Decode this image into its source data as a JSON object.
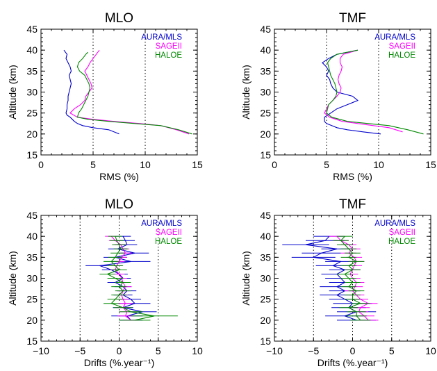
{
  "chart_data": [
    {
      "type": "line",
      "title": "MLO",
      "xlabel": "RMS (%)",
      "ylabel": "Altitude (km)",
      "xlim": [
        0,
        15
      ],
      "ylim": [
        15,
        45
      ],
      "xticks": [
        "0",
        "5",
        "10",
        "15"
      ],
      "yticks": [
        "15",
        "20",
        "25",
        "30",
        "35",
        "40",
        "45"
      ],
      "grid": "dotted vertical lines at x=5 and x=10",
      "legend": "top-right",
      "series": [
        {
          "name": "AURA/MLS",
          "color": "#0000cc",
          "x": [
            2.2,
            2.5,
            2.4,
            2.6,
            2.8,
            2.9,
            2.7,
            2.8,
            2.9,
            2.8,
            2.7,
            2.6,
            2.6,
            2.5,
            2.5,
            2.4,
            2.5,
            2.8,
            3.0,
            3.2,
            3.5,
            4.0,
            5.0,
            6.5,
            7.5
          ],
          "y": [
            40,
            39,
            38,
            37,
            36,
            35,
            34,
            33,
            32,
            31,
            30,
            29,
            28,
            27,
            26,
            25,
            24.5,
            24,
            23.5,
            23,
            22.5,
            22,
            21.5,
            21,
            20
          ]
        },
        {
          "name": "SAGEII",
          "color": "#ff00ff",
          "x": [
            5.6,
            5.3,
            5.0,
            4.7,
            4.5,
            4.2,
            4.4,
            4.6,
            4.8,
            4.9,
            4.6,
            4.3,
            4.2,
            3.8,
            3.2,
            2.8,
            3.5,
            5.0,
            7.0,
            9.5,
            11.5,
            13.0,
            14.2
          ],
          "y": [
            40,
            39,
            38,
            37,
            36,
            35,
            34,
            33,
            32,
            31,
            30,
            29,
            28,
            27,
            26,
            25,
            24,
            23.5,
            23,
            22.5,
            22,
            21,
            20
          ]
        },
        {
          "name": "HALOE",
          "color": "#008800",
          "x": [
            4.5,
            4.3,
            4.0,
            3.6,
            3.5,
            3.7,
            4.2,
            4.4,
            4.6,
            4.7,
            4.6,
            4.5,
            4.3,
            4.1,
            3.9,
            3.6,
            3.5,
            4.5,
            6.5,
            9.0,
            11.5,
            13.2,
            14.5
          ],
          "y": [
            39.5,
            39,
            38,
            37,
            36,
            35,
            34,
            33,
            32,
            31,
            30,
            29,
            28,
            27,
            26,
            25,
            24,
            23.5,
            23,
            22.5,
            22,
            21,
            20
          ]
        }
      ]
    },
    {
      "type": "line",
      "title": "TMF",
      "xlabel": "RMS (%)",
      "ylabel": "Altitude (km)",
      "xlim": [
        0,
        15
      ],
      "ylim": [
        15,
        45
      ],
      "xticks": [
        "0",
        "5",
        "10",
        "15"
      ],
      "yticks": [
        "15",
        "20",
        "25",
        "30",
        "35",
        "40",
        "45"
      ],
      "grid": "dotted vertical lines at x=5 and x=10",
      "legend": "top-right",
      "series": [
        {
          "name": "AURA/MLS",
          "color": "#0000cc",
          "x": [
            8.0,
            7.0,
            6.0,
            5.2,
            4.6,
            5.0,
            5.2,
            5.0,
            5.3,
            5.4,
            5.6,
            6.0,
            7.5,
            8.0,
            7.0,
            6.0,
            5.4,
            4.8,
            4.8,
            5.0,
            5.5,
            6.0,
            7.0,
            8.5,
            10.2
          ],
          "y": [
            40,
            39.5,
            39,
            38,
            37,
            36,
            35,
            34,
            33,
            32,
            31,
            30,
            29,
            28,
            27,
            26,
            25,
            24,
            23,
            22.5,
            22,
            21.5,
            21,
            20.5,
            20
          ]
        },
        {
          "name": "SAGEII",
          "color": "#ff00ff",
          "x": [
            8.0,
            7.3,
            6.6,
            6.3,
            6.3,
            6.5,
            6.4,
            6.2,
            6.1,
            6.2,
            6.4,
            6.3,
            6.0,
            5.6,
            5.2,
            4.8,
            5.3,
            6.5,
            8.0,
            9.5,
            11.0,
            12.3
          ],
          "y": [
            40,
            39.5,
            39,
            38,
            37,
            36,
            35,
            34,
            33,
            32,
            31,
            30,
            29,
            28,
            27,
            25,
            24,
            23,
            22.5,
            22,
            21.5,
            20.5
          ]
        },
        {
          "name": "HALOE",
          "color": "#008800",
          "x": [
            8.0,
            7.0,
            6.0,
            5.4,
            5.1,
            5.2,
            5.3,
            5.4,
            5.6,
            5.8,
            5.9,
            6.0,
            5.9,
            5.6,
            5.2,
            5.0,
            5.5,
            7.0,
            9.0,
            11.0,
            12.8,
            14.3
          ],
          "y": [
            40,
            39.5,
            39,
            38,
            37,
            36,
            35,
            34,
            33,
            32,
            31,
            30,
            29,
            28,
            27,
            25,
            24,
            23,
            22.5,
            22,
            21,
            20
          ]
        }
      ]
    },
    {
      "type": "line",
      "title": "MLO",
      "xlabel": "Drifts (%.year⁻¹)",
      "ylabel": "Altitude (km)",
      "xlim": [
        -10,
        10
      ],
      "ylim": [
        15,
        45
      ],
      "xticks": [
        "−10",
        "−5",
        "0",
        "5",
        "10"
      ],
      "yticks": [
        "15",
        "20",
        "25",
        "30",
        "35",
        "40",
        "45"
      ],
      "grid": "dotted vertical lines at x=-5, 0 and 5",
      "legend": "top-right",
      "series": [
        {
          "name": "AURA/MLS",
          "color": "#0000cc",
          "y": [
            40,
            39,
            38,
            37,
            36,
            35,
            34,
            33,
            32,
            31,
            30,
            29,
            28,
            27,
            26,
            25,
            24,
            23,
            22,
            21,
            20
          ],
          "x": [
            0.5,
            0.8,
            1.0,
            -0.2,
            2.0,
            -0.5,
            1.5,
            -2.5,
            -1.0,
            0.0,
            0.5,
            -0.5,
            0.5,
            1.0,
            0.5,
            1.5,
            2.0,
            0.5,
            3.0,
            1.0,
            1.5
          ],
          "err": [
            1.0,
            1.2,
            1.3,
            1.2,
            1.8,
            1.5,
            2.5,
            1.8,
            1.2,
            1.1,
            1.0,
            1.0,
            1.1,
            1.2,
            1.2,
            1.3,
            2.0,
            1.3,
            1.8,
            2.0,
            1.5
          ]
        },
        {
          "name": "SAGEII",
          "color": "#ff00ff",
          "y": [
            40,
            39,
            38,
            37,
            36,
            35,
            34,
            33,
            32,
            31,
            30,
            29,
            28,
            27,
            26,
            25,
            24,
            23,
            22,
            21,
            20
          ],
          "x": [
            -1.0,
            -0.5,
            0.2,
            0.5,
            0.8,
            0.3,
            0.0,
            -0.3,
            -0.5,
            0.0,
            0.3,
            0.5,
            0.8,
            0.5,
            0.3,
            0.5,
            0.8,
            0.5,
            1.0,
            0.8,
            1.5
          ],
          "err": [
            0.8,
            0.8,
            0.8,
            0.8,
            0.8,
            0.7,
            0.7,
            0.7,
            0.7,
            0.7,
            0.7,
            0.7,
            0.8,
            0.8,
            0.8,
            0.8,
            0.9,
            0.9,
            1.0,
            1.0,
            1.0
          ]
        },
        {
          "name": "HALOE",
          "color": "#008800",
          "y": [
            40,
            39,
            38,
            37,
            36,
            35,
            34,
            33,
            32,
            31,
            30,
            29,
            28,
            27,
            26,
            25,
            24,
            23,
            22,
            21,
            20
          ],
          "x": [
            -0.5,
            -0.3,
            0.0,
            0.2,
            -0.2,
            -0.5,
            -1.0,
            -0.5,
            0.0,
            -1.5,
            -0.5,
            0.5,
            0.0,
            0.5,
            0.0,
            -0.5,
            -1.0,
            0.5,
            1.5,
            4.5,
            2.0
          ],
          "err": [
            0.9,
            0.9,
            0.9,
            0.9,
            0.9,
            0.9,
            1.0,
            1.0,
            1.0,
            1.0,
            1.0,
            1.0,
            1.0,
            1.0,
            1.0,
            1.0,
            1.0,
            1.2,
            1.5,
            3.0,
            2.0
          ]
        }
      ]
    },
    {
      "type": "line",
      "title": "TMF",
      "xlabel": "Drifts (%.year⁻¹)",
      "ylabel": "Altitude (km)",
      "xlim": [
        -10,
        10
      ],
      "ylim": [
        15,
        45
      ],
      "xticks": [
        "−10",
        "−5",
        "0",
        "5",
        "10"
      ],
      "yticks": [
        "15",
        "20",
        "25",
        "30",
        "35",
        "40",
        "45"
      ],
      "grid": "dotted vertical lines at x=-5, 0 and 5",
      "legend": "top-right",
      "series": [
        {
          "name": "AURA/MLS",
          "color": "#0000cc",
          "y": [
            40,
            39,
            38,
            37,
            36,
            35,
            34,
            33,
            32,
            31,
            30,
            29,
            28,
            27,
            26,
            25,
            24,
            23,
            22,
            21,
            20
          ],
          "x": [
            -3.0,
            -3.5,
            -6.0,
            -2.0,
            -4.0,
            -5.0,
            -1.5,
            -2.5,
            -1.0,
            -2.0,
            -1.5,
            -1.0,
            -2.0,
            -1.0,
            -2.0,
            -1.0,
            0.0,
            -0.5,
            0.5,
            -1.0,
            0.5
          ],
          "err": [
            2.0,
            2.5,
            3.0,
            2.0,
            2.5,
            2.8,
            2.0,
            2.2,
            2.0,
            2.0,
            2.0,
            2.0,
            2.2,
            2.0,
            2.2,
            2.0,
            2.5,
            2.2,
            2.5,
            2.5,
            2.5
          ]
        },
        {
          "name": "SAGEII",
          "color": "#ff00ff",
          "y": [
            40,
            39,
            38,
            37,
            36,
            35,
            34,
            33,
            32,
            31,
            30,
            29,
            28,
            27,
            26,
            25,
            24,
            23,
            22,
            21,
            20
          ],
          "x": [
            -2.0,
            -1.5,
            -0.5,
            0.0,
            -0.5,
            0.2,
            0.5,
            0.2,
            0.0,
            -0.3,
            0.0,
            0.5,
            0.3,
            0.0,
            0.5,
            1.0,
            2.0,
            1.0,
            0.8,
            1.5,
            2.0
          ],
          "err": [
            1.0,
            1.0,
            1.0,
            1.0,
            1.0,
            1.0,
            1.0,
            1.0,
            1.0,
            1.0,
            1.0,
            1.0,
            1.0,
            1.0,
            1.0,
            1.0,
            1.2,
            1.2,
            1.2,
            1.3,
            1.3
          ]
        },
        {
          "name": "HALOE",
          "color": "#008800",
          "y": [
            40,
            39,
            38,
            37,
            36,
            35,
            34,
            33,
            32,
            31,
            30,
            29,
            28,
            27,
            26,
            25,
            24,
            23,
            22,
            21,
            20
          ],
          "x": [
            -1.0,
            -1.5,
            -1.0,
            -0.5,
            0.0,
            -0.5,
            0.5,
            -0.5,
            0.0,
            -1.0,
            -0.5,
            0.0,
            -0.5,
            0.5,
            0.0,
            0.0,
            1.0,
            -0.5,
            0.5,
            0.5,
            1.0
          ],
          "err": [
            1.0,
            1.0,
            1.0,
            1.0,
            1.0,
            1.0,
            1.0,
            1.0,
            1.0,
            1.0,
            1.0,
            1.0,
            1.0,
            1.0,
            1.0,
            1.0,
            1.2,
            1.2,
            1.2,
            1.3,
            1.3
          ]
        }
      ]
    }
  ]
}
